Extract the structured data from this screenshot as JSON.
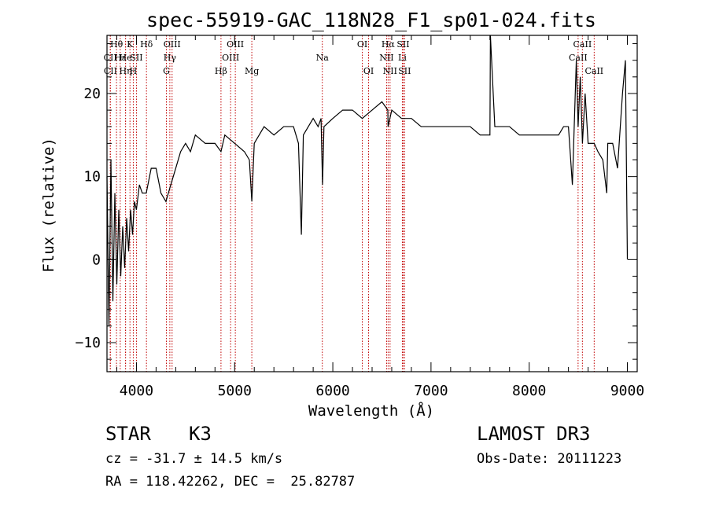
{
  "chart_data": {
    "type": "line",
    "title": "spec-55919-GAC_118N28_F1_sp01-024.fits",
    "xlabel": "Wavelength (Å)",
    "ylabel": "Flux (relative)",
    "xlim": [
      3700,
      9100
    ],
    "ylim": [
      -13.5,
      27
    ],
    "xticks": [
      4000,
      5000,
      6000,
      7000,
      8000,
      9000
    ],
    "yticks": [
      -10,
      0,
      10,
      20
    ],
    "grid": false,
    "series": [
      {
        "name": "spectrum",
        "x": [
          3700,
          3720,
          3740,
          3760,
          3780,
          3800,
          3820,
          3840,
          3860,
          3880,
          3900,
          3920,
          3940,
          3960,
          3980,
          4000,
          4030,
          4060,
          4100,
          4150,
          4200,
          4250,
          4300,
          4350,
          4400,
          4450,
          4500,
          4550,
          4600,
          4700,
          4800,
          4861,
          4900,
          5000,
          5100,
          5150,
          5175,
          5200,
          5300,
          5400,
          5500,
          5600,
          5650,
          5680,
          5700,
          5800,
          5850,
          5880,
          5895,
          5910,
          6000,
          6100,
          6200,
          6300,
          6400,
          6500,
          6560,
          6563,
          6600,
          6700,
          6800,
          6900,
          7000,
          7100,
          7200,
          7300,
          7400,
          7500,
          7600,
          7605,
          7650,
          7700,
          7800,
          7900,
          8000,
          8100,
          8200,
          8300,
          8350,
          8400,
          8440,
          8480,
          8498,
          8520,
          8542,
          8570,
          8600,
          8662,
          8700,
          8750,
          8790,
          8800,
          8850,
          8900,
          8950,
          8980,
          9000
        ],
        "values": [
          10,
          -8,
          12,
          -5,
          8,
          -3,
          6,
          -2,
          4,
          -1,
          5,
          1,
          6,
          3,
          7,
          6,
          9,
          8,
          8,
          11,
          11,
          8,
          7,
          9,
          11,
          13,
          14,
          13,
          15,
          14,
          14,
          13,
          15,
          14,
          13,
          12,
          7,
          14,
          16,
          15,
          16,
          16,
          14,
          3,
          15,
          17,
          16,
          17,
          9,
          16,
          17,
          18,
          18,
          17,
          18,
          19,
          18,
          16,
          18,
          17,
          17,
          16,
          16,
          16,
          16,
          16,
          16,
          15,
          15,
          27,
          16,
          16,
          16,
          15,
          15,
          15,
          15,
          15,
          16,
          16,
          9,
          24,
          16,
          22,
          14,
          20,
          14,
          14,
          13,
          12,
          8,
          14,
          14,
          11,
          20,
          24,
          0
        ]
      }
    ],
    "spectral_lines": [
      {
        "name": "Hθ",
        "x": 3797,
        "row": 1
      },
      {
        "name": "CII",
        "x": 3733,
        "row": 2
      },
      {
        "name": "CII",
        "x": 3735,
        "row": 3
      },
      {
        "name": "Hε",
        "x": 3835,
        "row": 2
      },
      {
        "name": "Hη",
        "x": 3889,
        "row": 3
      },
      {
        "name": "K",
        "x": 3934,
        "row": 1
      },
      {
        "name": "He",
        "x": 3889,
        "row": 2
      },
      {
        "name": "H",
        "x": 3968,
        "row": 3
      },
      {
        "name": "SII",
        "x": 4000,
        "row": 2
      },
      {
        "name": "Hδ",
        "x": 4102,
        "row": 1
      },
      {
        "name": "OIII",
        "x": 4363,
        "row": 1
      },
      {
        "name": "Hγ",
        "x": 4340,
        "row": 2
      },
      {
        "name": "G",
        "x": 4305,
        "row": 3
      },
      {
        "name": "Hβ",
        "x": 4861,
        "row": 3
      },
      {
        "name": "OIII",
        "x": 4959,
        "row": 2
      },
      {
        "name": "OIII",
        "x": 5007,
        "row": 1
      },
      {
        "name": "Mg",
        "x": 5175,
        "row": 3
      },
      {
        "name": "Na",
        "x": 5893,
        "row": 2
      },
      {
        "name": "OI",
        "x": 6300,
        "row": 1
      },
      {
        "name": "OI",
        "x": 6364,
        "row": 3
      },
      {
        "name": "Hα",
        "x": 6563,
        "row": 1
      },
      {
        "name": "NII",
        "x": 6548,
        "row": 2
      },
      {
        "name": "NII",
        "x": 6583,
        "row": 3
      },
      {
        "name": "SII",
        "x": 6716,
        "row": 1
      },
      {
        "name": "Li",
        "x": 6708,
        "row": 2
      },
      {
        "name": "SII",
        "x": 6731,
        "row": 3
      },
      {
        "name": "CaII",
        "x": 8542,
        "row": 1
      },
      {
        "name": "CaII",
        "x": 8498,
        "row": 2
      },
      {
        "name": "CaII",
        "x": 8662,
        "row": 3
      }
    ]
  },
  "info": {
    "object_class": "STAR",
    "subclass": "K3",
    "survey": "LAMOST DR3",
    "redshift_text": "cz = -31.7 ± 14.5 km/s",
    "obs_date": "Obs-Date: 20111223",
    "coords": "RA = 118.42262, DEC =  25.82787"
  }
}
